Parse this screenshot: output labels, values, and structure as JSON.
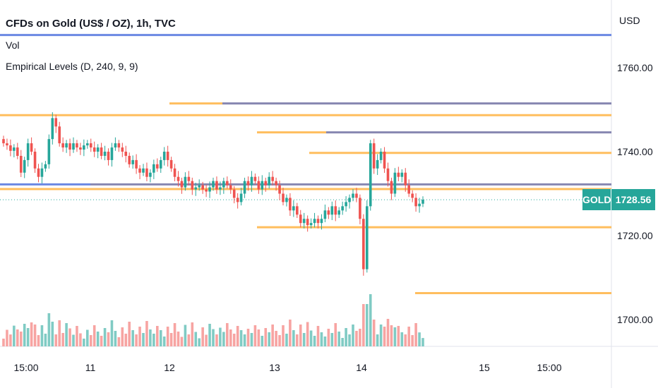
{
  "legend": {
    "symbol_line": "CFDs on Gold (US$ / OZ), 1h, TVC",
    "volume_label": "Vol",
    "indicator_label": "Empirical Levels (D, 240, 9, 9)"
  },
  "price_scale": {
    "currency": "USD",
    "ticks": [
      "1760.00",
      "1740.00",
      "1720.00",
      "1700.00"
    ],
    "current_symbol": "GOLD",
    "current_price": "1728.56"
  },
  "time_scale": {
    "ticks": [
      "15:00",
      "11",
      "12",
      "13",
      "14",
      "15",
      "15:00"
    ]
  },
  "colors": {
    "up": "#26a69a",
    "down": "#ef5350",
    "level_orange": "#ffb74d",
    "level_blue": "#5b7be0",
    "level_gray": "#7a7aa8",
    "vol_up": "#80cbc4",
    "vol_down": "#f7a4a2",
    "current_price_line": "#26a69a"
  },
  "chart_data": {
    "type": "candlestick",
    "title": "CFDs on Gold (US$ / OZ), 1h, TVC",
    "y_unit": "USD",
    "ylim": [
      1692,
      1772
    ],
    "x_ticks": [
      "15:00",
      "11",
      "12",
      "13",
      "14",
      "15",
      "15:00"
    ],
    "current_price": 1728.56,
    "levels": [
      {
        "price": 1767.8,
        "color": "blue",
        "start": "10"
      },
      {
        "price": 1751.5,
        "color": "orange",
        "start": "12",
        "end": "12 15:00"
      },
      {
        "price": 1751.5,
        "color": "gray",
        "start": "12 15:00"
      },
      {
        "price": 1748.7,
        "color": "orange",
        "start": "10"
      },
      {
        "price": 1744.6,
        "color": "orange",
        "start": "13",
        "end": "13 12:00"
      },
      {
        "price": 1744.6,
        "color": "gray",
        "start": "13 12:00"
      },
      {
        "price": 1739.7,
        "color": "orange",
        "start": "13 06:00"
      },
      {
        "price": 1732.2,
        "color": "blue",
        "start": "10",
        "end": "11"
      },
      {
        "price": 1732.2,
        "color": "gray",
        "start": "11"
      },
      {
        "price": 1731.1,
        "color": "orange",
        "start": "10"
      },
      {
        "price": 1722.0,
        "color": "orange",
        "start": "13"
      },
      {
        "price": 1706.3,
        "color": "orange",
        "start": "14 09:00"
      }
    ]
  }
}
